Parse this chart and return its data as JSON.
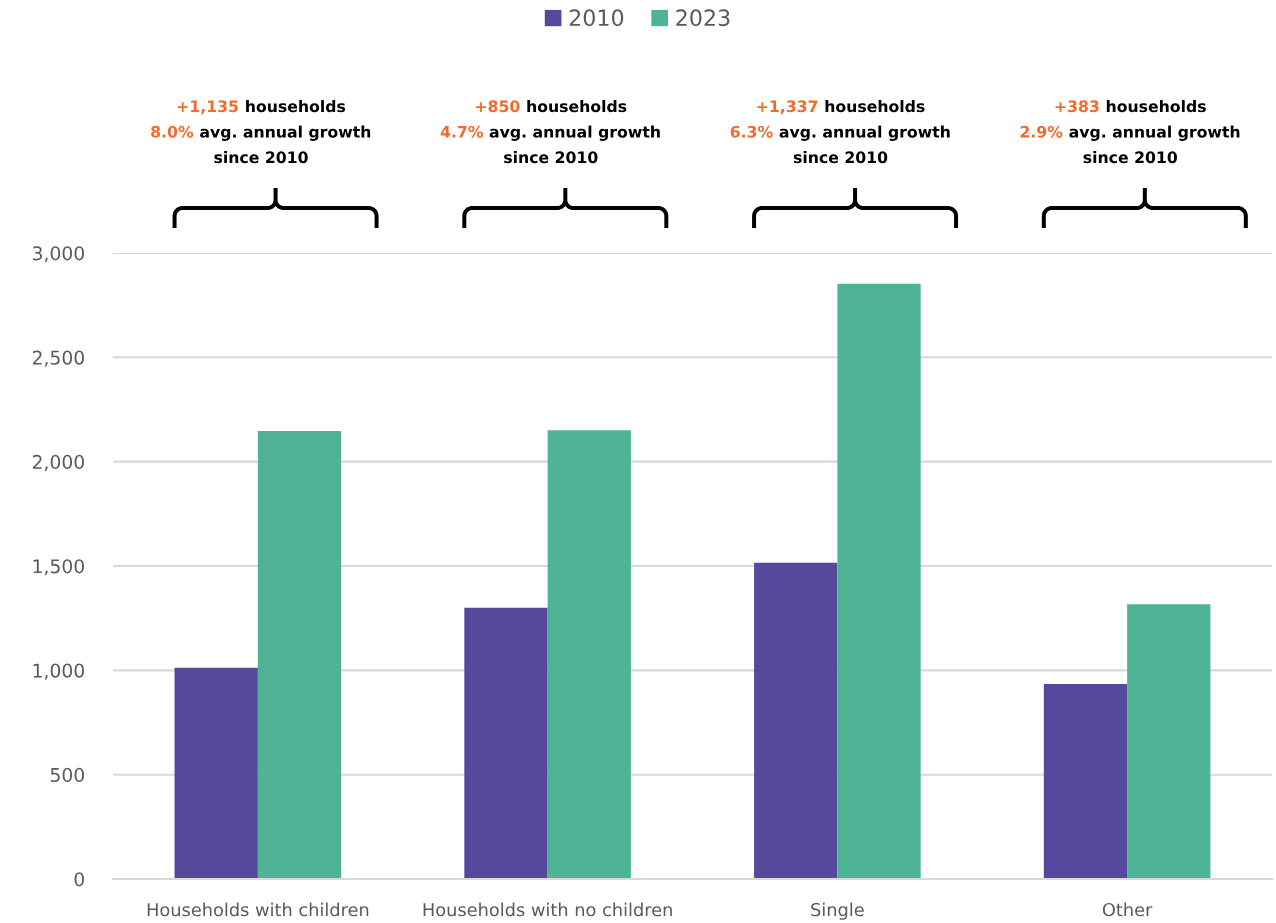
{
  "chart_data": {
    "type": "bar",
    "categories": [
      "Households with children",
      "Households with no children",
      "Single",
      "Other"
    ],
    "series": [
      {
        "name": "2010",
        "color": "#56499b",
        "values": [
          1012,
          1300,
          1516,
          934
        ]
      },
      {
        "name": "2023",
        "color": "#4eb495",
        "values": [
          2147,
          2150,
          2853,
          1317
        ]
      }
    ],
    "ylim": [
      0,
      3000
    ],
    "yticks": [
      0,
      500,
      {
        "value": 1000,
        "label": "1,000"
      },
      {
        "value": 1500,
        "label": "1,500"
      },
      {
        "value": 2000,
        "label": "2,000"
      },
      {
        "value": 2500,
        "label": "2,500"
      },
      {
        "value": 3000,
        "label": "3,000"
      }
    ],
    "grid": "y",
    "legend": "top",
    "annotations": [
      "+1,135 households\n8.0% avg. annual growth\nsince 2010",
      "+850 households\n4.7% avg. annual growth\nsince 2010",
      "+1,337 households\n6.3% avg. annual growth\nsince 2010",
      "+383 households\n2.9% avg. annual growth\nsince 2010"
    ]
  }
}
